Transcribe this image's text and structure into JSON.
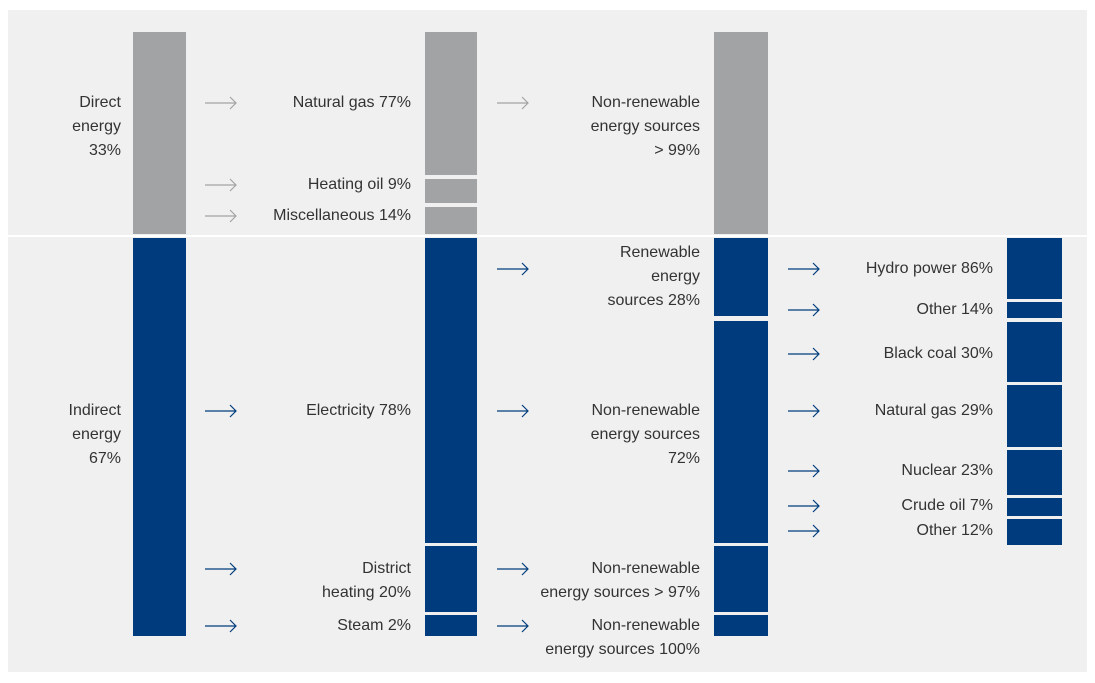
{
  "labels": [
    {
      "lines": [
        "Direct",
        "energy",
        "33%"
      ]
    },
    {
      "lines": [
        "Indirect",
        "energy",
        "67%"
      ]
    },
    {
      "lines": [
        "Natural gas 77%"
      ]
    },
    {
      "lines": [
        "Heating oil 9%"
      ]
    },
    {
      "lines": [
        "Miscellaneous 14%"
      ]
    },
    {
      "lines": [
        "Electricity 78%"
      ]
    },
    {
      "lines": [
        "District",
        "heating 20%"
      ]
    },
    {
      "lines": [
        "Steam 2%"
      ]
    },
    {
      "lines": [
        "Non-renewable",
        "energy sources",
        "> 99%"
      ]
    },
    {
      "lines": [
        "Renewable",
        "energy",
        "sources 28%"
      ]
    },
    {
      "lines": [
        "Non-renewable",
        "energy sources",
        "72%"
      ]
    },
    {
      "lines": [
        "Non-renewable",
        "energy sources > 97%"
      ]
    },
    {
      "lines": [
        "Non-renewable",
        "energy sources 100%"
      ]
    },
    {
      "lines": [
        "Hydro power 86%"
      ]
    },
    {
      "lines": [
        "Other 14%"
      ]
    },
    {
      "lines": [
        "Black coal 30%"
      ]
    },
    {
      "lines": [
        "Natural gas 29%"
      ]
    },
    {
      "lines": [
        "Nuclear 23%"
      ]
    },
    {
      "lines": [
        "Crude oil 7%"
      ]
    },
    {
      "lines": [
        "Other 12%"
      ]
    }
  ]
}
